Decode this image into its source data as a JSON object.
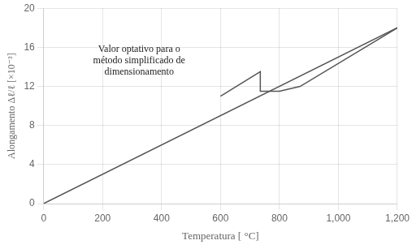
{
  "chart_data": {
    "type": "line",
    "xlabel": "Temperatura [ °C]",
    "ylabel": "Alongamento Δℓ/ℓ [×10⁻³]",
    "annotation": "Valor optativo para o\nmétodo simplificado de\ndimensionamento",
    "series": [
      {
        "x": [
          0,
          1200
        ],
        "values": [
          0,
          18.0
        ],
        "color": "#555555"
      },
      {
        "x": [
          600,
          735,
          735,
          800,
          870,
          870,
          1200
        ],
        "values": [
          11.0,
          13.5,
          11.5,
          11.5,
          12.0,
          12.0,
          18.0
        ],
        "color": "#555555"
      }
    ],
    "xlim": [
      0,
      1200
    ],
    "ylim": [
      0,
      20
    ],
    "xticks": [
      0,
      200,
      400,
      600,
      800,
      1000,
      1200
    ],
    "yticks": [
      0,
      4,
      8,
      12,
      16,
      20
    ],
    "grid": true
  }
}
